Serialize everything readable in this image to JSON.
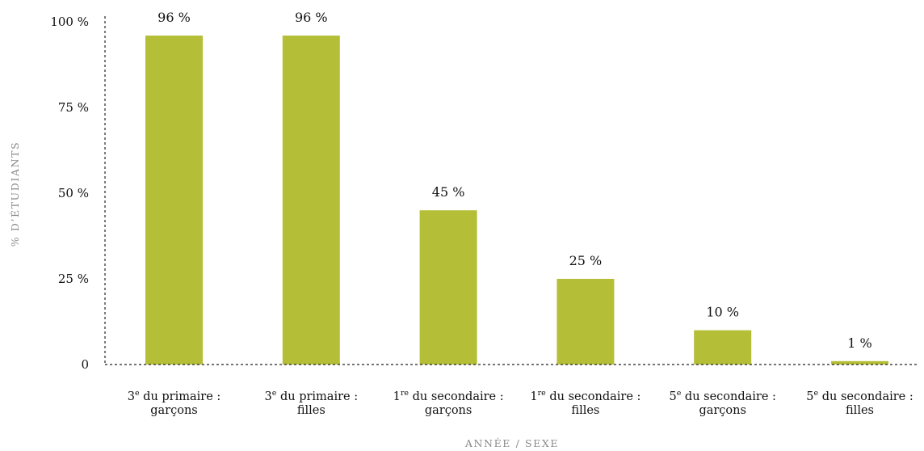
{
  "chart_data": {
    "type": "bar",
    "categories": [
      {
        "line1": "3",
        "sup": "e",
        "line1_rest": " du primaire :",
        "line2": "garçons"
      },
      {
        "line1": "3",
        "sup": "e",
        "line1_rest": " du primaire :",
        "line2": "filles"
      },
      {
        "line1": "1",
        "sup": "re",
        "line1_rest": " du secondaire :",
        "line2": "garçons"
      },
      {
        "line1": "1",
        "sup": "re",
        "line1_rest": " du secondaire :",
        "line2": "filles"
      },
      {
        "line1": "5",
        "sup": "e",
        "line1_rest": " du secondaire :",
        "line2": "garçons"
      },
      {
        "line1": "5",
        "sup": "e",
        "line1_rest": " du secondaire :",
        "line2": "filles"
      }
    ],
    "values": [
      96,
      96,
      45,
      25,
      10,
      1
    ],
    "data_labels": [
      "96 %",
      "96 %",
      "45 %",
      "25 %",
      "10 %",
      "1 %"
    ],
    "xlabel": "ANNÉE / SEXE",
    "ylabel": "% D’ÉTUDIANTS",
    "ylim": [
      0,
      100
    ],
    "yticks": [
      {
        "value": 0,
        "label": "0"
      },
      {
        "value": 25,
        "label": "25 %"
      },
      {
        "value": 50,
        "label": "50 %"
      },
      {
        "value": 75,
        "label": "75 %"
      },
      {
        "value": 100,
        "label": "100 %"
      }
    ],
    "grid": false,
    "colors": {
      "bar": "#b5be37",
      "axis": "#222222"
    }
  }
}
